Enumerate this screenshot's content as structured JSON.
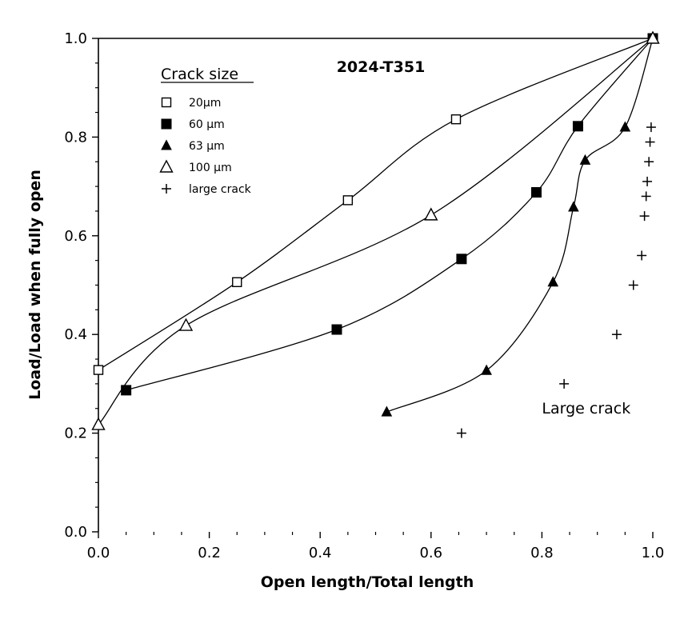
{
  "chart_data": {
    "type": "line",
    "title": "2024-T351",
    "xlabel": "Open length/Total length",
    "ylabel": "Load/Load when fully open",
    "xlim": [
      0,
      1
    ],
    "ylim": [
      0,
      1
    ],
    "x_ticks": [
      "0.0",
      "0.2",
      "0.4",
      "0.6",
      "0.8",
      "1.0"
    ],
    "y_ticks": [
      "0.0",
      "0.2",
      "0.4",
      "0.6",
      "0.8",
      "1.0"
    ],
    "grid": false,
    "legend": {
      "title": "Crack size",
      "placement": "top-left",
      "entries": [
        "20µm",
        "60 µm",
        "63 µm",
        "100 µm",
        "large crack"
      ]
    },
    "series": [
      {
        "name": "20µm",
        "marker": "open-square",
        "connected": true,
        "x": [
          0.0,
          0.25,
          0.45,
          0.645,
          1.0
        ],
        "y": [
          0.328,
          0.506,
          0.672,
          0.836,
          1.0
        ]
      },
      {
        "name": "60 µm",
        "marker": "filled-square",
        "connected": true,
        "x": [
          0.05,
          0.43,
          0.655,
          0.79,
          0.865,
          1.0
        ],
        "y": [
          0.287,
          0.41,
          0.553,
          0.688,
          0.822,
          1.0
        ]
      },
      {
        "name": "63 µm",
        "marker": "filled-triangle",
        "connected": true,
        "x": [
          0.52,
          0.7,
          0.82,
          0.857,
          0.878,
          0.95,
          1.0
        ],
        "y": [
          0.243,
          0.327,
          0.506,
          0.658,
          0.753,
          0.82,
          1.0
        ]
      },
      {
        "name": "100 µm",
        "marker": "open-triangle",
        "connected": true,
        "x": [
          0.0,
          0.158,
          0.6,
          1.0
        ],
        "y": [
          0.217,
          0.418,
          0.642,
          1.0
        ]
      },
      {
        "name": "large crack",
        "marker": "plus",
        "connected": false,
        "x": [
          0.655,
          0.84,
          0.935,
          0.965,
          0.98,
          0.985,
          0.988,
          0.99,
          0.993,
          0.995,
          0.997
        ],
        "y": [
          0.2,
          0.3,
          0.4,
          0.5,
          0.56,
          0.64,
          0.68,
          0.71,
          0.75,
          0.79,
          0.82
        ]
      }
    ],
    "annotations": [
      {
        "text": "Large crack",
        "x": 0.88,
        "y": 0.24
      }
    ]
  }
}
